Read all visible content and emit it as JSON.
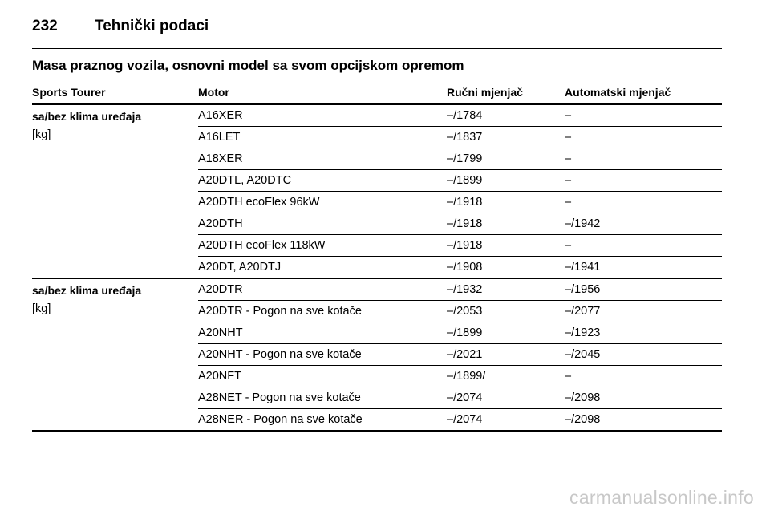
{
  "header": {
    "page_number": "232",
    "title": "Tehnički podaci"
  },
  "section": {
    "heading": "Masa praznog vozila, osnovni model sa svom opcijskom opremom"
  },
  "table": {
    "columns": [
      "Sports Tourer",
      "Motor",
      "Ručni mjenjač",
      "Automatski mjenjač"
    ],
    "groups": [
      {
        "label": "sa/bez klima uređaja",
        "unit": "[kg]",
        "rows": [
          {
            "motor": "A16XER",
            "manual": "–/1784",
            "auto": "–"
          },
          {
            "motor": "A16LET",
            "manual": "–/1837",
            "auto": "–"
          },
          {
            "motor": "A18XER",
            "manual": "–/1799",
            "auto": "–"
          },
          {
            "motor": "A20DTL, A20DTC",
            "manual": "–/1899",
            "auto": "–"
          },
          {
            "motor": "A20DTH ecoFlex 96kW",
            "manual": "–/1918",
            "auto": "–"
          },
          {
            "motor": "A20DTH",
            "manual": "–/1918",
            "auto": "–/1942"
          },
          {
            "motor": "A20DTH ecoFlex 118kW",
            "manual": "–/1918",
            "auto": "–"
          },
          {
            "motor": "A20DT, A20DTJ",
            "manual": "–/1908",
            "auto": "–/1941"
          }
        ]
      },
      {
        "label": "sa/bez klima uređaja",
        "unit": "[kg]",
        "rows": [
          {
            "motor": "A20DTR",
            "manual": "–/1932",
            "auto": "–/1956"
          },
          {
            "motor": "A20DTR - Pogon na sve kotače",
            "manual": "–/2053",
            "auto": "–/2077"
          },
          {
            "motor": "A20NHT",
            "manual": "–/1899",
            "auto": "–/1923"
          },
          {
            "motor": "A20NHT - Pogon na sve kotače",
            "manual": "–/2021",
            "auto": "–/2045"
          },
          {
            "motor": "A20NFT",
            "manual": "–/1899/",
            "auto": "–"
          },
          {
            "motor": "A28NET - Pogon na sve kotače",
            "manual": "–/2074",
            "auto": "–/2098"
          },
          {
            "motor": "A28NER - Pogon na sve kotače",
            "manual": "–/2074",
            "auto": "–/2098"
          }
        ]
      }
    ]
  },
  "watermark": "carmanualsonline.info"
}
